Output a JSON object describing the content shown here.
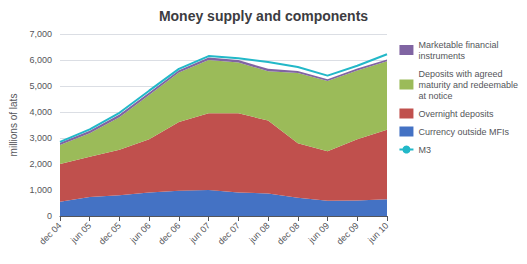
{
  "chart_data": {
    "type": "area",
    "title": "Money supply and components",
    "ylabel": "millions of lats",
    "categories": [
      "dec 04",
      "jun 05",
      "dec 05",
      "jun 06",
      "dec 06",
      "jun 07",
      "dec 07",
      "jun 08",
      "dec 08",
      "jun 09",
      "dec 09",
      "jun 10"
    ],
    "stacked": true,
    "grid": true,
    "legend": "right",
    "ylim": [
      0,
      7000
    ],
    "yticks": [
      0,
      1000,
      2000,
      3000,
      4000,
      5000,
      6000,
      7000
    ],
    "series": [
      {
        "name": "Currency outside MFIs",
        "type": "area",
        "color": "#4472c4",
        "values": [
          550,
          730,
          800,
          900,
          970,
          1000,
          900,
          870,
          700,
          590,
          600,
          640
        ]
      },
      {
        "name": "Overnight deposits",
        "type": "area",
        "color": "#c0504d",
        "values": [
          1450,
          1550,
          1750,
          2050,
          2650,
          2950,
          3050,
          2800,
          2100,
          1900,
          2350,
          2680
        ]
      },
      {
        "name": "Deposits with agreed\nmaturity and redeemable\nat notice",
        "type": "area",
        "color": "#9bbb59",
        "values": [
          730,
          900,
          1250,
          1700,
          1900,
          2050,
          1950,
          1900,
          2700,
          2700,
          2650,
          2630
        ]
      },
      {
        "name": "Marketable financial\ninstruments",
        "type": "area",
        "color": "#8064a2",
        "values": [
          90,
          100,
          100,
          100,
          90,
          100,
          100,
          90,
          80,
          70,
          70,
          70
        ]
      },
      {
        "name": "M3",
        "type": "line",
        "color": "#22b8c8",
        "values": [
          2850,
          3330,
          3970,
          4820,
          5660,
          6150,
          6070,
          5920,
          5730,
          5400,
          5780,
          6220
        ]
      }
    ]
  }
}
